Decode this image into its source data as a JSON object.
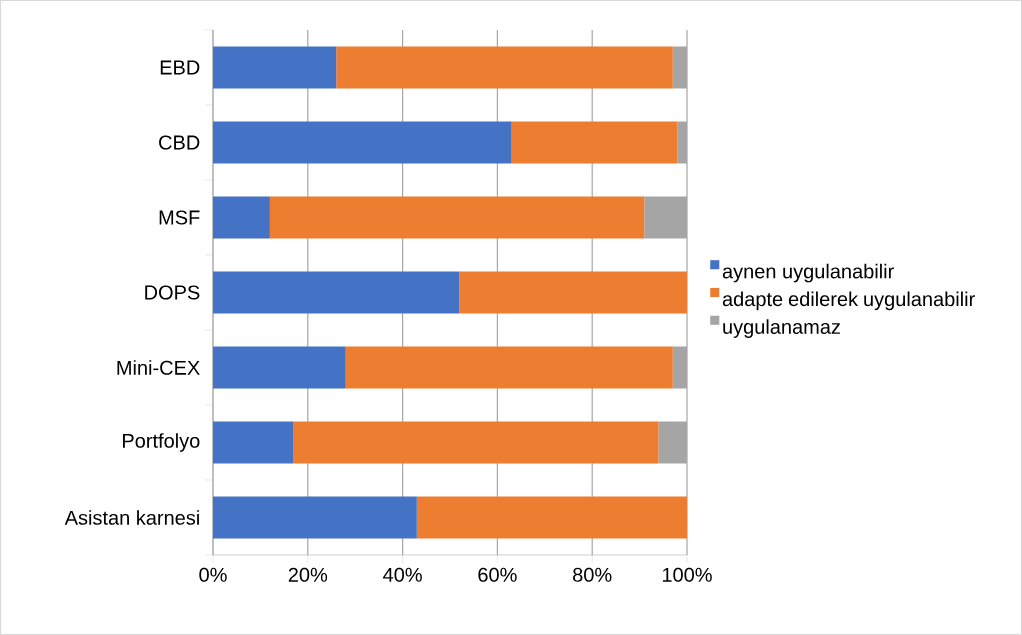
{
  "chart_data": {
    "type": "bar",
    "orientation": "horizontal",
    "stacked": true,
    "categories": [
      "EBD",
      "CBD",
      "MSF",
      "DOPS",
      "Mini-CEX",
      "Portfolyo",
      "Asistan karnesi"
    ],
    "series": [
      {
        "name": "aynen uygulanabilir",
        "color": "#4472c4",
        "values": [
          26,
          63,
          12,
          52,
          28,
          17,
          43
        ]
      },
      {
        "name": "adapte edilerek uygulanabilir",
        "color": "#ed7d31",
        "values": [
          71,
          35,
          79,
          48,
          69,
          77,
          57
        ]
      },
      {
        "name": "uygulanamaz",
        "color": "#a5a5a5",
        "values": [
          3,
          2,
          9,
          0,
          3,
          6,
          0
        ]
      }
    ],
    "xlim": [
      0,
      100
    ],
    "xticks": [
      {
        "value": 0,
        "label": "0%"
      },
      {
        "value": 20,
        "label": "20%"
      },
      {
        "value": 40,
        "label": "40%"
      },
      {
        "value": 60,
        "label": "60%"
      },
      {
        "value": 80,
        "label": "80%"
      },
      {
        "value": 100,
        "label": "100%"
      }
    ],
    "grid": "x",
    "legend": "right"
  }
}
